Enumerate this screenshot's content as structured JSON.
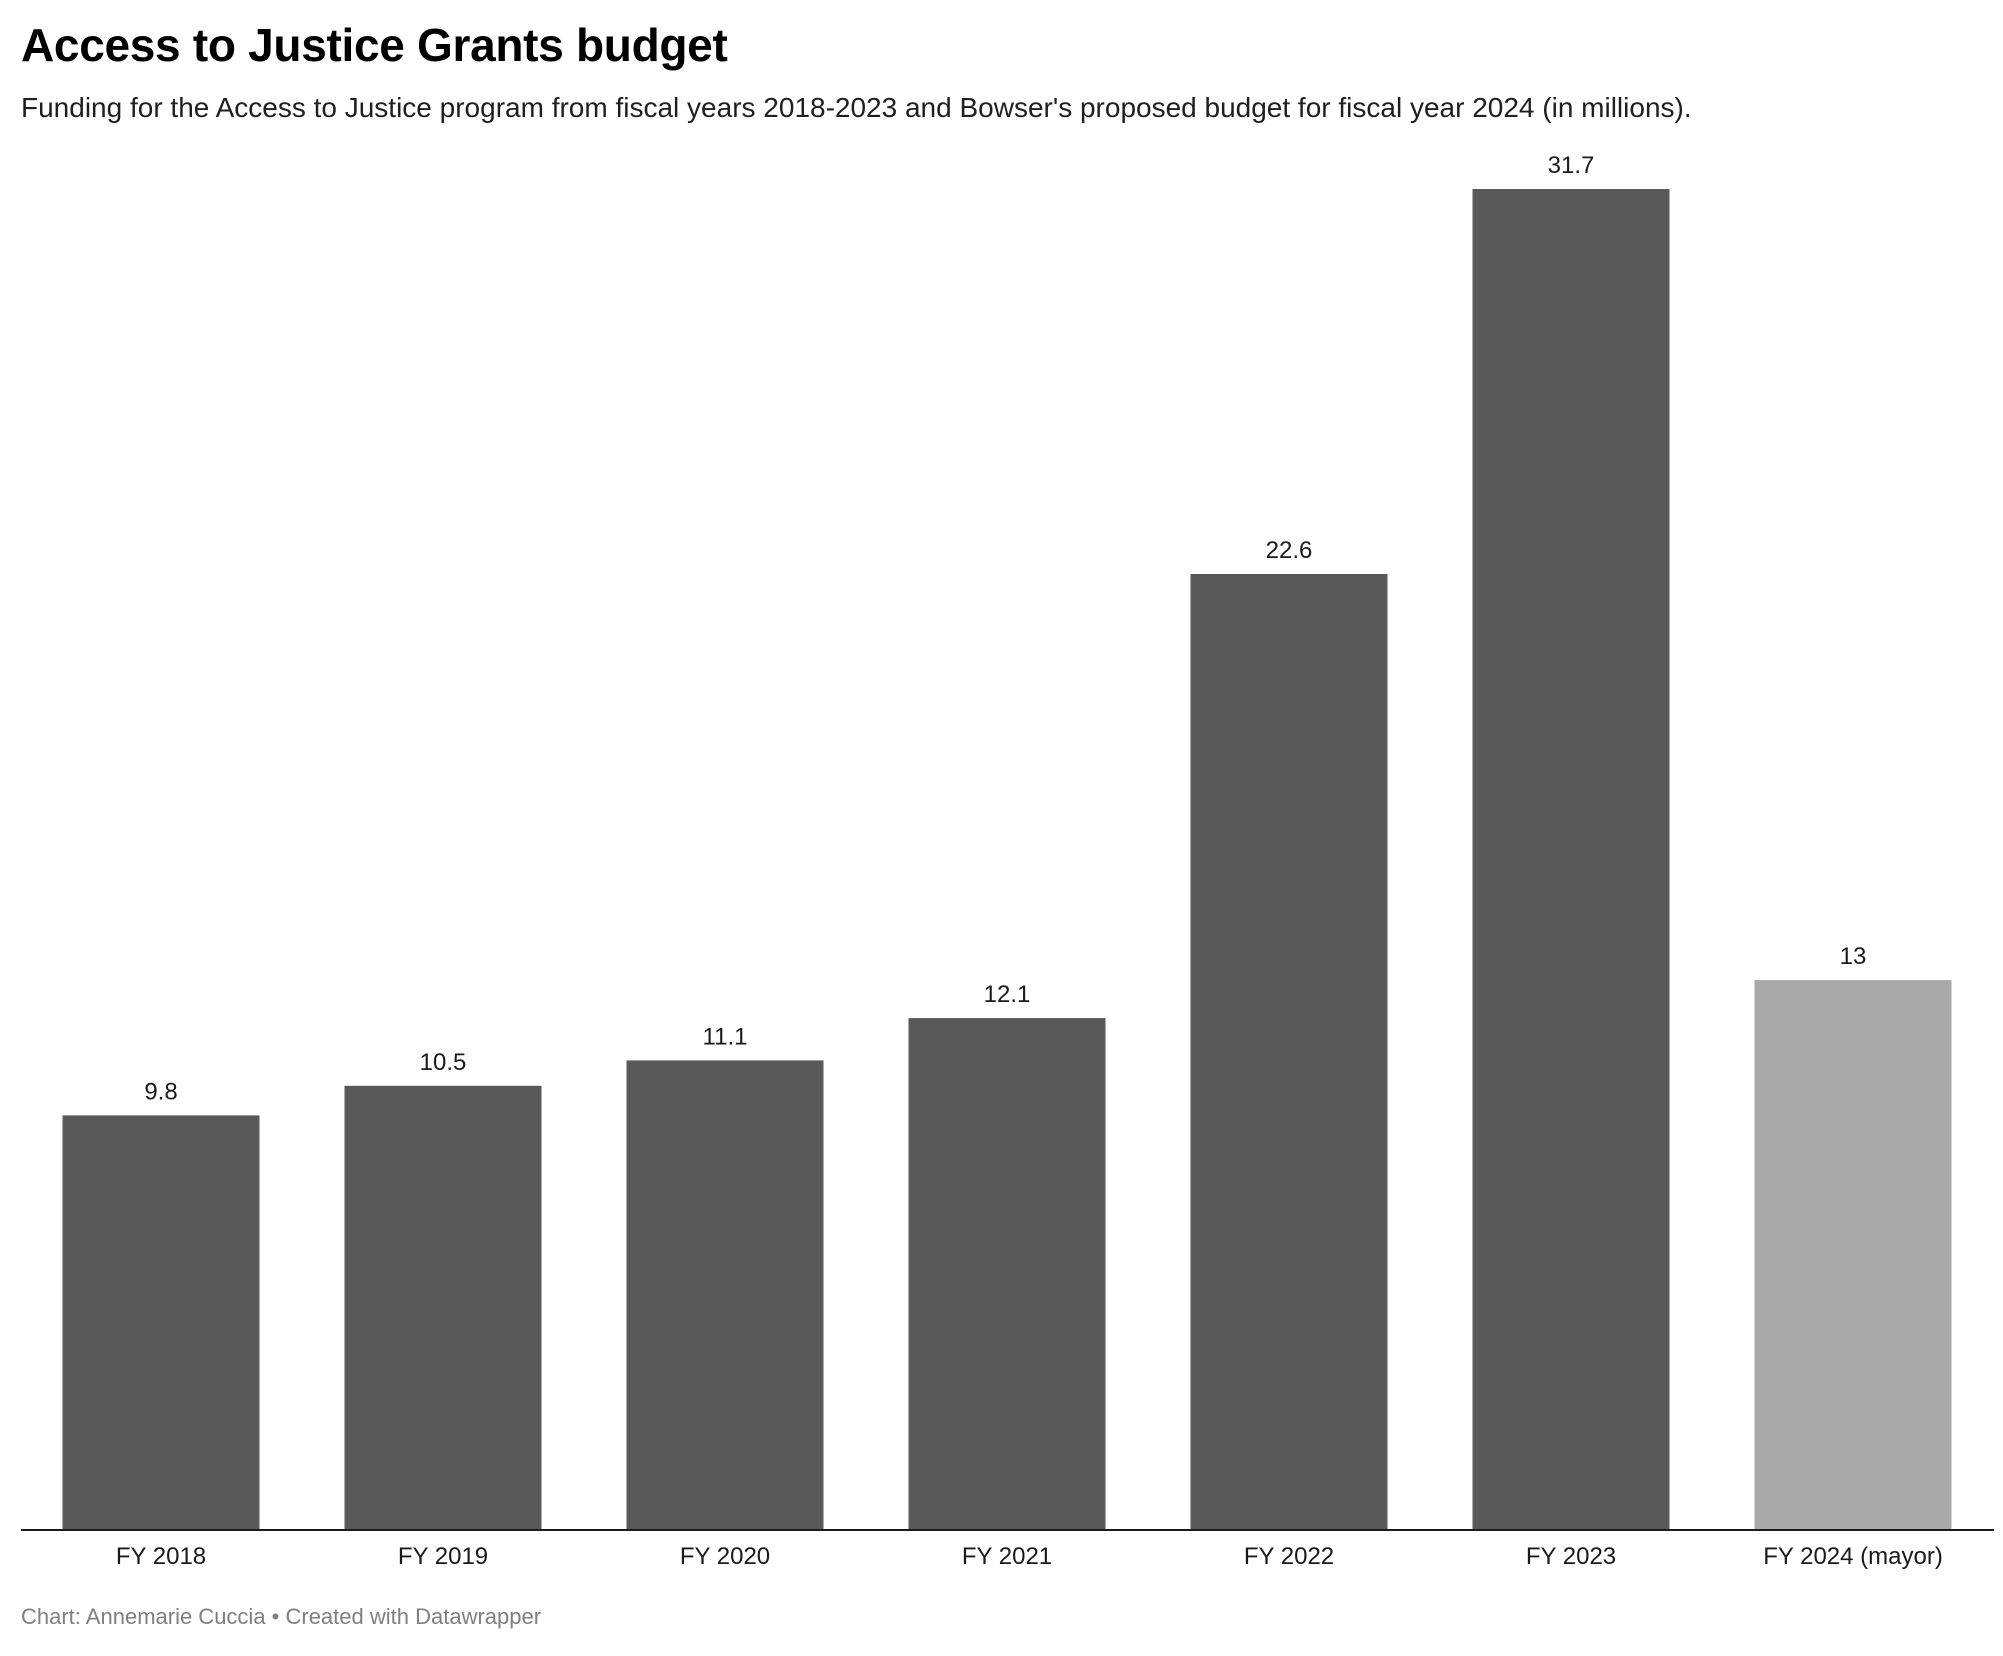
{
  "header": {
    "title": "Access to Justice Grants budget",
    "subtitle": "Funding for the Access to Justice program from fiscal years 2018-2023 and Bowser's proposed budget for fiscal year 2024 (in millions)."
  },
  "footer": {
    "credit": "Chart: Annemarie Cuccia • Created with Datawrapper"
  },
  "colors": {
    "bar_default": "#595959",
    "bar_proposed": "#a9a9a9",
    "axis_line": "#1a1a1a",
    "label_text": "#1a1a1a"
  },
  "chart_data": {
    "type": "bar",
    "title": "Access to Justice Grants budget",
    "subtitle": "Funding for the Access to Justice program from fiscal years 2018-2023 and Bowser's proposed budget for fiscal year 2024 (in millions).",
    "xlabel": "",
    "ylabel": "",
    "categories": [
      "FY 2018",
      "FY 2019",
      "FY 2020",
      "FY 2021",
      "FY 2022",
      "FY 2023",
      "FY 2024 (mayor)"
    ],
    "values": [
      9.8,
      10.5,
      11.1,
      12.1,
      22.6,
      31.7,
      13
    ],
    "value_labels": [
      "9.8",
      "10.5",
      "11.1",
      "12.1",
      "22.6",
      "31.7",
      "13"
    ],
    "highlight": [
      false,
      false,
      false,
      false,
      false,
      false,
      true
    ],
    "ylim": [
      0,
      31.7
    ],
    "grid": false,
    "legend": "none"
  }
}
